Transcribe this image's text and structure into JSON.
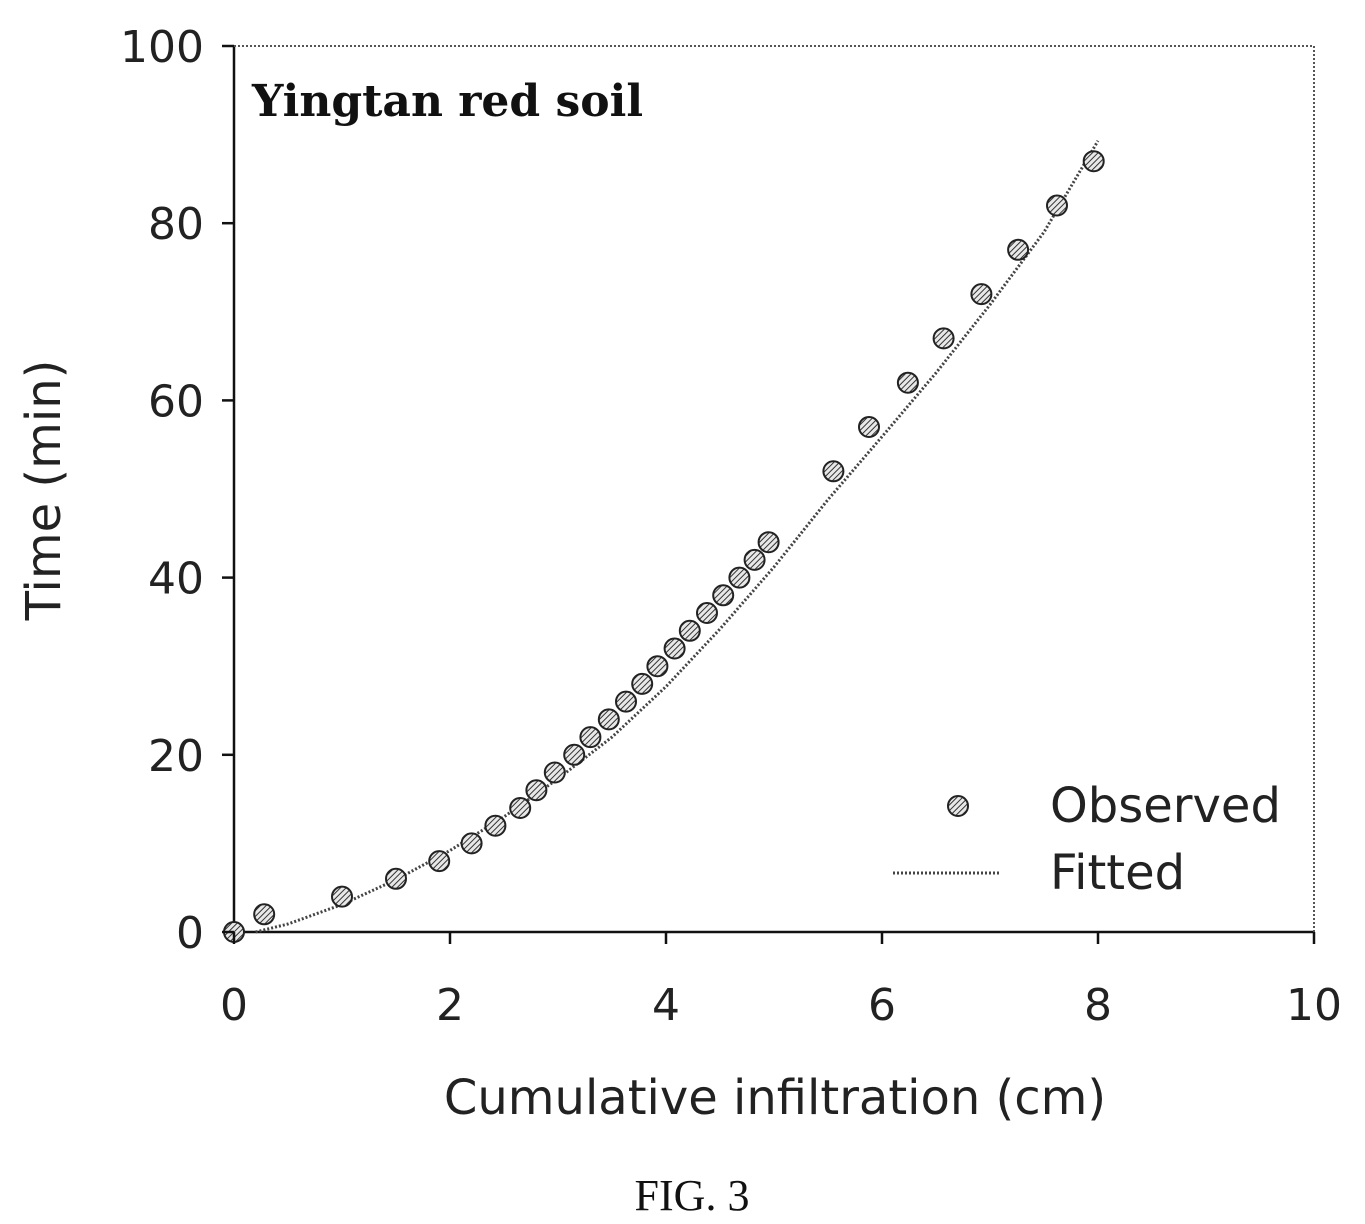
{
  "chart_data": {
    "type": "scatter",
    "title": "Yingtan red soil",
    "xlabel": "Cumulative infiltration (cm)",
    "ylabel": "Time (min)",
    "xlim": [
      0,
      10
    ],
    "ylim": [
      0,
      100
    ],
    "x_ticks": [
      "0",
      "2",
      "4",
      "6",
      "8",
      "10"
    ],
    "y_ticks": [
      "0",
      "20",
      "40",
      "60",
      "80",
      "100"
    ],
    "grid": false,
    "legend": "bottom-right",
    "series": [
      {
        "name": "Observed",
        "kind": "points",
        "x": [
          0.0,
          0.28,
          1.0,
          1.5,
          1.9,
          2.2,
          2.42,
          2.65,
          2.8,
          2.97,
          3.15,
          3.3,
          3.47,
          3.63,
          3.78,
          3.92,
          4.08,
          4.22,
          4.38,
          4.53,
          4.68,
          4.82,
          4.95,
          5.55,
          5.88,
          6.24,
          6.57,
          6.92,
          7.26,
          7.62,
          7.96
        ],
        "y": [
          0,
          2,
          4,
          6,
          8,
          10,
          12,
          14,
          16,
          18,
          20,
          22,
          24,
          26,
          28,
          30,
          32,
          34,
          36,
          38,
          40,
          42,
          44,
          52,
          57,
          62,
          67,
          72,
          77,
          82,
          87
        ]
      },
      {
        "name": "Fitted",
        "kind": "dotted-line",
        "x": [
          0.2,
          0.5,
          1.0,
          1.5,
          2.0,
          2.5,
          3.0,
          3.5,
          4.0,
          4.5,
          5.0,
          5.5,
          6.0,
          6.5,
          7.0,
          7.5,
          8.0
        ],
        "y": [
          0,
          0.9,
          3.1,
          5.9,
          9.2,
          13.0,
          17.3,
          22.0,
          27.7,
          34.2,
          41.2,
          48.8,
          55.9,
          63.1,
          70.8,
          79.0,
          89.3
        ]
      }
    ]
  },
  "caption": "FIG. 3"
}
